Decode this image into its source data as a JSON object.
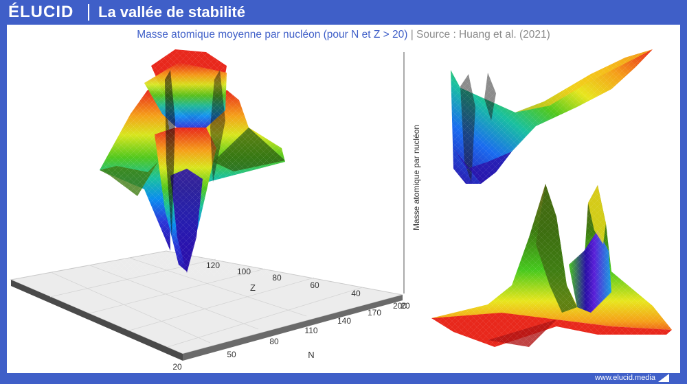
{
  "header": {
    "logo": "ÉLUCID",
    "title": "La vallée de stabilité"
  },
  "subtitle": {
    "main": "Masse atomique moyenne par nucléon (pour N et Z > 20)",
    "separator": " | ",
    "source": "Source : Huang et al. (2021)"
  },
  "footer": {
    "url": "www.elucid.media"
  },
  "colors": {
    "brand": "#3f5fc8",
    "surface_high": "#e8281c",
    "surface_mid": "#f4e21a",
    "surface_low": "#2a0fa8"
  },
  "chart_data": {
    "type": "surface3d",
    "title": "",
    "views": [
      "main",
      "top-right",
      "bottom-right"
    ],
    "x_axis": {
      "label": "N",
      "ticks": [
        "20",
        "50",
        "80",
        "110",
        "140",
        "170",
        "200"
      ]
    },
    "y_axis": {
      "label": "Z",
      "ticks": [
        "20",
        "40",
        "60",
        "80",
        "100",
        "120"
      ]
    },
    "z_axis": {
      "label": "Masse atomique par nucléon"
    },
    "colorscale": [
      "#2a0fa8",
      "#0a6cff",
      "#19c0a0",
      "#46c81e",
      "#c8e61e",
      "#f4e21a",
      "#f5a01a",
      "#e8281c"
    ],
    "grid": true,
    "legend": "none"
  }
}
